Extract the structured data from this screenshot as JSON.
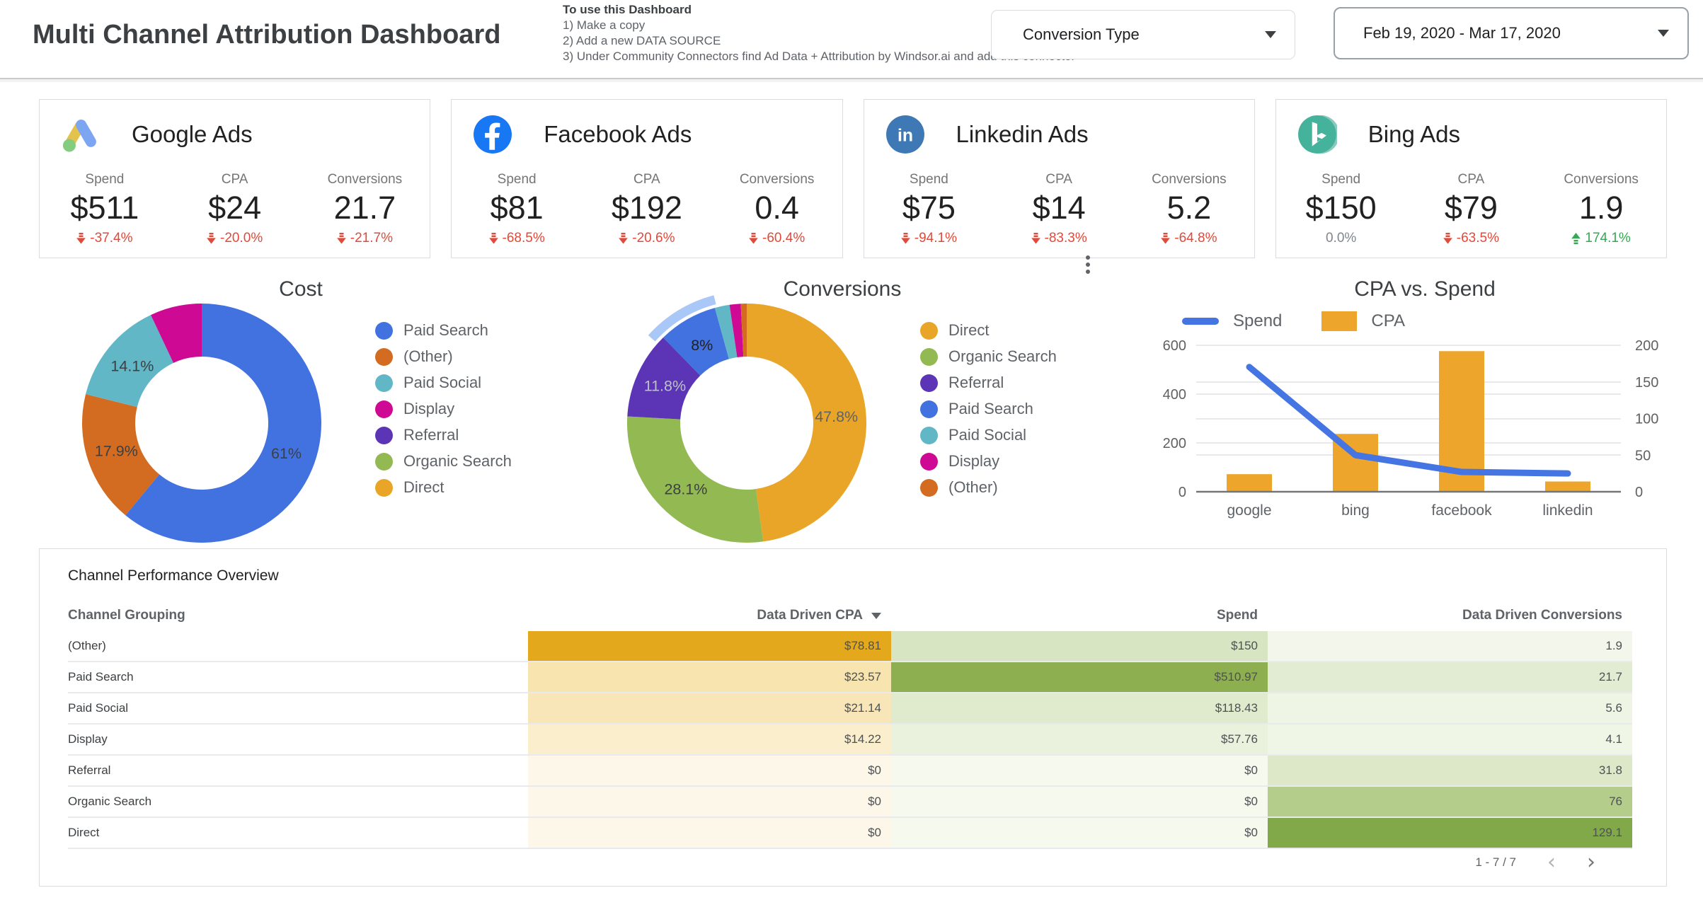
{
  "header": {
    "title": "Multi Channel Attribution Dashboard",
    "instructions": {
      "heading": "To use this Dashboard",
      "step1": "1) Make a copy",
      "step2": "2) Add a new DATA SOURCE",
      "step3": "3) Under Community Connectors find Ad Data + Attribution by Windsor.ai and add this connector"
    },
    "conversion_type_filter": {
      "value": "Conversion Type"
    },
    "date_range": {
      "value": "Feb 19, 2020 - Mar 17, 2020"
    }
  },
  "scorecards": [
    {
      "platform": "Google Ads",
      "icon": "google-ads-icon",
      "metrics": [
        {
          "label": "Spend",
          "value": "$511",
          "delta": "-37.4%",
          "direction": "down"
        },
        {
          "label": "CPA",
          "value": "$24",
          "delta": "-20.0%",
          "direction": "down"
        },
        {
          "label": "Conversions",
          "value": "21.7",
          "delta": "-21.7%",
          "direction": "down"
        }
      ]
    },
    {
      "platform": "Facebook Ads",
      "icon": "facebook-icon",
      "metrics": [
        {
          "label": "Spend",
          "value": "$81",
          "delta": "-68.5%",
          "direction": "down"
        },
        {
          "label": "CPA",
          "value": "$192",
          "delta": "-20.6%",
          "direction": "down"
        },
        {
          "label": "Conversions",
          "value": "0.4",
          "delta": "-60.4%",
          "direction": "down"
        }
      ]
    },
    {
      "platform": "Linkedin Ads",
      "icon": "linkedin-icon",
      "metrics": [
        {
          "label": "Spend",
          "value": "$75",
          "delta": "-94.1%",
          "direction": "down"
        },
        {
          "label": "CPA",
          "value": "$14",
          "delta": "-83.3%",
          "direction": "down"
        },
        {
          "label": "Conversions",
          "value": "5.2",
          "delta": "-64.8%",
          "direction": "down"
        }
      ]
    },
    {
      "platform": "Bing Ads",
      "icon": "bing-icon",
      "metrics": [
        {
          "label": "Spend",
          "value": "$150",
          "delta": "0.0%",
          "direction": "none"
        },
        {
          "label": "CPA",
          "value": "$79",
          "delta": "-63.5%",
          "direction": "down"
        },
        {
          "label": "Conversions",
          "value": "1.9",
          "delta": "174.1%",
          "direction": "up"
        }
      ]
    }
  ],
  "colors": {
    "negative": "#E04A3B",
    "positive": "#34A853",
    "neutral": "#80868B",
    "paid_search_blue": "#4272E0",
    "other_orange": "#D36B21",
    "paid_social_teal": "#62B7C6",
    "display_magenta": "#CE0A94",
    "referral_purple": "#5B35B5",
    "organic_green": "#93B953",
    "direct_amber": "#E9A528",
    "highlight_blue": "#A9C7F7"
  },
  "chart_data": [
    {
      "type": "pie",
      "donut": true,
      "title": "Cost",
      "legend_position": "right",
      "slices": [
        {
          "label": "Paid Search",
          "value": 61.0,
          "display": "61%",
          "color": "#4272E0",
          "label_color": "#3c4043"
        },
        {
          "label": "(Other)",
          "value": 17.9,
          "display": "17.9%",
          "color": "#D36B21",
          "label_color": "#3c4043"
        },
        {
          "label": "Paid Social",
          "value": 14.1,
          "display": "14.1%",
          "color": "#62B7C6",
          "label_color": "#3c4043"
        },
        {
          "label": "Display",
          "value": 7.0,
          "display": "",
          "color": "#CE0A94"
        },
        {
          "label": "Referral",
          "value": 0,
          "display": "",
          "color": "#5B35B5"
        },
        {
          "label": "Organic Search",
          "value": 0,
          "display": "",
          "color": "#93B953"
        },
        {
          "label": "Direct",
          "value": 0,
          "display": "",
          "color": "#E9A528"
        }
      ]
    },
    {
      "type": "pie",
      "donut": true,
      "title": "Conversions",
      "legend_position": "right",
      "slices": [
        {
          "label": "Direct",
          "value": 47.8,
          "display": "47.8%",
          "color": "#E9A528",
          "label_color": "#5f6368"
        },
        {
          "label": "Organic Search",
          "value": 28.1,
          "display": "28.1%",
          "color": "#93B953",
          "label_color": "#3c4043"
        },
        {
          "label": "Referral",
          "value": 11.8,
          "display": "11.8%",
          "color": "#5B35B5",
          "label_color": "#bdc1c6"
        },
        {
          "label": "Paid Search",
          "value": 8.0,
          "display": "8%",
          "color": "#4272E0",
          "label_color": "#202124",
          "highlighted": true
        },
        {
          "label": "Paid Social",
          "value": 2.0,
          "display": "",
          "color": "#62B7C6"
        },
        {
          "label": "Display",
          "value": 1.5,
          "display": "",
          "color": "#CE0A94"
        },
        {
          "label": "(Other)",
          "value": 0.8,
          "display": "",
          "color": "#D36B21"
        }
      ]
    },
    {
      "type": "combo",
      "title": "CPA vs. Spend",
      "categories": [
        "google",
        "bing",
        "facebook",
        "linkedin"
      ],
      "series": [
        {
          "name": "Spend",
          "render": "line",
          "axis": "left",
          "values": [
            511,
            150,
            81,
            75
          ],
          "color": "#4575E3"
        },
        {
          "name": "CPA",
          "render": "bar",
          "axis": "right",
          "values": [
            24,
            79,
            192,
            14
          ],
          "color": "#EDA62B"
        }
      ],
      "left_axis": {
        "ticks": [
          0,
          200,
          400,
          600
        ],
        "max": 600
      },
      "right_axis": {
        "ticks": [
          0,
          50,
          100,
          150,
          200
        ],
        "max": 200
      },
      "grid": true,
      "legend_position": "top"
    }
  ],
  "table": {
    "title": "Channel Performance Overview",
    "columns": {
      "c1": "Channel Grouping",
      "c2": "Data Driven CPA",
      "c3": "Spend",
      "c4": "Data Driven Conversions"
    },
    "sorted_by": "Data Driven CPA",
    "rows": [
      {
        "channel": "(Other)",
        "cpa": "$78.81",
        "cpa_bg": "#E3A81C",
        "spend": "$150",
        "spend_bg": "#D8E5C2",
        "conv": "1.9",
        "conv_bg": "#F3F7EB"
      },
      {
        "channel": "Paid Search",
        "cpa": "$23.57",
        "cpa_bg": "#F7E4AE",
        "spend": "$510.97",
        "spend_bg": "#8EAF50",
        "conv": "21.7",
        "conv_bg": "#E2ECD3"
      },
      {
        "channel": "Paid Social",
        "cpa": "$21.14",
        "cpa_bg": "#F8E6B8",
        "spend": "$118.43",
        "spend_bg": "#E0EACD",
        "conv": "5.6",
        "conv_bg": "#EFF5E4"
      },
      {
        "channel": "Display",
        "cpa": "$14.22",
        "cpa_bg": "#FAEECC",
        "spend": "$57.76",
        "spend_bg": "#EAF1DC",
        "conv": "4.1",
        "conv_bg": "#F0F6E6"
      },
      {
        "channel": "Referral",
        "cpa": "$0",
        "cpa_bg": "#FCF7E9",
        "spend": "$0",
        "spend_bg": "#F5F9EE",
        "conv": "31.8",
        "conv_bg": "#DDE8C9"
      },
      {
        "channel": "Organic Search",
        "cpa": "$0",
        "cpa_bg": "#FCF7E9",
        "spend": "$0",
        "spend_bg": "#F5F9EE",
        "conv": "76",
        "conv_bg": "#B4CD8B"
      },
      {
        "channel": "Direct",
        "cpa": "$0",
        "cpa_bg": "#FCF7E9",
        "spend": "$0",
        "spend_bg": "#F5F9EE",
        "conv": "129.1",
        "conv_bg": "#81A94A"
      }
    ],
    "pagination": "1 - 7 / 7"
  }
}
